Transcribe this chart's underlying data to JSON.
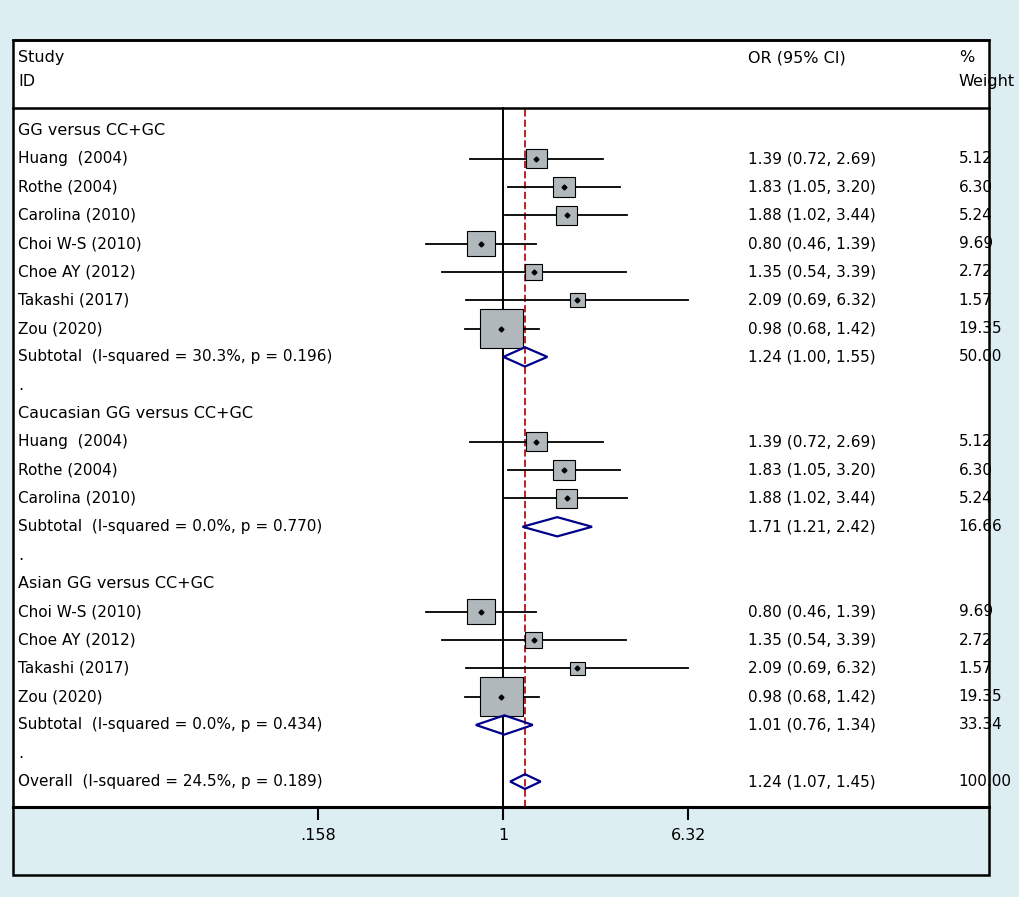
{
  "background_color": "#ddeef3",
  "plot_bg": "#ffffff",
  "x_ticks": [
    0.158,
    1,
    6.32
  ],
  "x_tick_labels": [
    ".158",
    "1",
    "6.32"
  ],
  "x_min": 0.12,
  "x_max": 10.0,
  "dashed_line_x": 1.24,
  "vertical_line_x": 1.0,
  "rows": [
    {
      "label": "GG versus CC+GC",
      "type": "subheader",
      "or_text": "",
      "wt_text": ""
    },
    {
      "label": "Huang  (2004)",
      "type": "study",
      "or": 1.39,
      "lo": 0.72,
      "hi": 2.69,
      "weight": 5.12,
      "or_text": "1.39 (0.72, 2.69)",
      "wt_text": "5.12"
    },
    {
      "label": "Rothe (2004)",
      "type": "study",
      "or": 1.83,
      "lo": 1.05,
      "hi": 3.2,
      "weight": 6.3,
      "or_text": "1.83 (1.05, 3.20)",
      "wt_text": "6.30"
    },
    {
      "label": "Carolina (2010)",
      "type": "study",
      "or": 1.88,
      "lo": 1.02,
      "hi": 3.44,
      "weight": 5.24,
      "or_text": "1.88 (1.02, 3.44)",
      "wt_text": "5.24"
    },
    {
      "label": "Choi W-S (2010)",
      "type": "study",
      "or": 0.8,
      "lo": 0.46,
      "hi": 1.39,
      "weight": 9.69,
      "or_text": "0.80 (0.46, 1.39)",
      "wt_text": "9.69"
    },
    {
      "label": "Choe AY (2012)",
      "type": "study",
      "or": 1.35,
      "lo": 0.54,
      "hi": 3.39,
      "weight": 2.72,
      "or_text": "1.35 (0.54, 3.39)",
      "wt_text": "2.72"
    },
    {
      "label": "Takashi (2017)",
      "type": "study",
      "or": 2.09,
      "lo": 0.69,
      "hi": 6.32,
      "weight": 1.57,
      "or_text": "2.09 (0.69, 6.32)",
      "wt_text": "1.57"
    },
    {
      "label": "Zou (2020)",
      "type": "study",
      "or": 0.98,
      "lo": 0.68,
      "hi": 1.42,
      "weight": 19.35,
      "or_text": "0.98 (0.68, 1.42)",
      "wt_text": "19.35"
    },
    {
      "label": "Subtotal  (I-squared = 30.3%, p = 0.196)",
      "type": "subtotal",
      "or": 1.24,
      "lo": 1.0,
      "hi": 1.55,
      "or_text": "1.24 (1.00, 1.55)",
      "wt_text": "50.00"
    },
    {
      "label": ".",
      "type": "dot",
      "or_text": "",
      "wt_text": ""
    },
    {
      "label": "Caucasian GG versus CC+GC",
      "type": "subheader",
      "or_text": "",
      "wt_text": ""
    },
    {
      "label": "Huang  (2004)",
      "type": "study",
      "or": 1.39,
      "lo": 0.72,
      "hi": 2.69,
      "weight": 5.12,
      "or_text": "1.39 (0.72, 2.69)",
      "wt_text": "5.12"
    },
    {
      "label": "Rothe (2004)",
      "type": "study",
      "or": 1.83,
      "lo": 1.05,
      "hi": 3.2,
      "weight": 6.3,
      "or_text": "1.83 (1.05, 3.20)",
      "wt_text": "6.30"
    },
    {
      "label": "Carolina (2010)",
      "type": "study",
      "or": 1.88,
      "lo": 1.02,
      "hi": 3.44,
      "weight": 5.24,
      "or_text": "1.88 (1.02, 3.44)",
      "wt_text": "5.24"
    },
    {
      "label": "Subtotal  (I-squared = 0.0%, p = 0.770)",
      "type": "subtotal",
      "or": 1.71,
      "lo": 1.21,
      "hi": 2.42,
      "or_text": "1.71 (1.21, 2.42)",
      "wt_text": "16.66"
    },
    {
      "label": ".",
      "type": "dot",
      "or_text": "",
      "wt_text": ""
    },
    {
      "label": "Asian GG versus CC+GC",
      "type": "subheader",
      "or_text": "",
      "wt_text": ""
    },
    {
      "label": "Choi W-S (2010)",
      "type": "study",
      "or": 0.8,
      "lo": 0.46,
      "hi": 1.39,
      "weight": 9.69,
      "or_text": "0.80 (0.46, 1.39)",
      "wt_text": "9.69"
    },
    {
      "label": "Choe AY (2012)",
      "type": "study",
      "or": 1.35,
      "lo": 0.54,
      "hi": 3.39,
      "weight": 2.72,
      "or_text": "1.35 (0.54, 3.39)",
      "wt_text": "2.72"
    },
    {
      "label": "Takashi (2017)",
      "type": "study",
      "or": 2.09,
      "lo": 0.69,
      "hi": 6.32,
      "weight": 1.57,
      "or_text": "2.09 (0.69, 6.32)",
      "wt_text": "1.57"
    },
    {
      "label": "Zou (2020)",
      "type": "study",
      "or": 0.98,
      "lo": 0.68,
      "hi": 1.42,
      "weight": 19.35,
      "or_text": "0.98 (0.68, 1.42)",
      "wt_text": "19.35"
    },
    {
      "label": "Subtotal  (I-squared = 0.0%, p = 0.434)",
      "type": "subtotal",
      "or": 1.01,
      "lo": 0.76,
      "hi": 1.34,
      "or_text": "1.01 (0.76, 1.34)",
      "wt_text": "33.34"
    },
    {
      "label": ".",
      "type": "dot",
      "or_text": "",
      "wt_text": ""
    },
    {
      "label": "Overall  (I-squared = 24.5%, p = 0.189)",
      "type": "overall",
      "or": 1.24,
      "lo": 1.07,
      "hi": 1.45,
      "or_text": "1.24 (1.07, 1.45)",
      "wt_text": "100.00"
    }
  ],
  "diamond_color": "#00008B",
  "square_color": "#b0b8bb",
  "square_border": "#000000",
  "ci_line_color": "#000000",
  "dashed_color": "#bb2222",
  "vline_color": "#000000",
  "text_color": "#000000",
  "font_size": 11.5,
  "max_weight": 19.35,
  "min_sq_half": 0.006,
  "max_sq_half": 0.021
}
